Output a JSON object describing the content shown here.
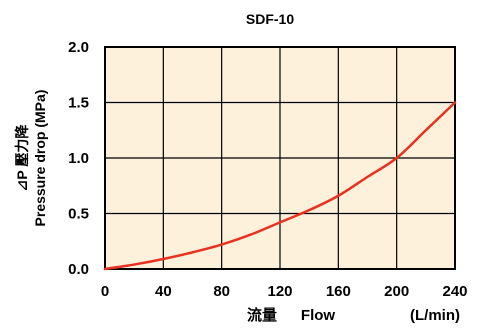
{
  "chart_data": {
    "type": "line",
    "title": "SDF-10",
    "xlabel_parts": [
      "流量",
      "Flow",
      "(L/min)"
    ],
    "ylabel_lines": [
      "⊿P 壓力降",
      "Pressure drop (MPa)"
    ],
    "xlim": [
      0,
      240
    ],
    "ylim": [
      0,
      2.0
    ],
    "x_ticks": [
      0,
      40,
      80,
      120,
      160,
      200,
      240
    ],
    "x_tick_labels": [
      "0",
      "40",
      "80",
      "120",
      "160",
      "200",
      "240"
    ],
    "y_ticks": [
      0,
      0.5,
      1.0,
      1.5,
      2.0
    ],
    "y_tick_labels": [
      "0.0",
      "0.5",
      "1.0",
      "1.5",
      "2.0"
    ],
    "grid": true,
    "colors": {
      "plot_background": "#fdf1dc",
      "curve": "#e8311e",
      "grid": "#000000"
    },
    "series": [
      {
        "x": [
          0,
          20,
          40,
          60,
          80,
          100,
          120,
          140,
          160,
          180,
          200,
          220,
          240
        ],
        "y": [
          0,
          0.04,
          0.09,
          0.15,
          0.22,
          0.31,
          0.42,
          0.53,
          0.66,
          0.83,
          1.0,
          1.25,
          1.5
        ]
      }
    ]
  }
}
